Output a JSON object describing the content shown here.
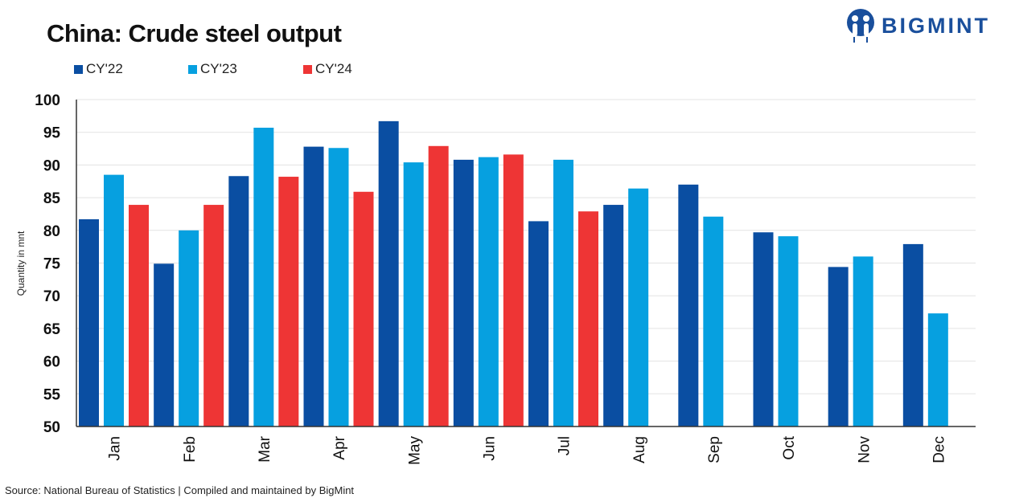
{
  "logo": {
    "text": "BIGMINT",
    "color": "#1a4f9c"
  },
  "chart_data": {
    "type": "bar",
    "title": "China: Crude steel output",
    "ylabel": "Quantity in mnt",
    "xlabel": "",
    "ylim": [
      50,
      100
    ],
    "yticks": [
      50,
      55,
      60,
      65,
      70,
      75,
      80,
      85,
      90,
      95,
      100
    ],
    "grid": true,
    "legend_position": "top-left",
    "categories": [
      "Jan",
      "Feb",
      "Mar",
      "Apr",
      "May",
      "Jun",
      "Jul",
      "Aug",
      "Sep",
      "Oct",
      "Nov",
      "Dec"
    ],
    "series": [
      {
        "name": "CY'22",
        "color": "#0a4ea2",
        "values": [
          81.7,
          74.9,
          88.3,
          92.8,
          96.7,
          90.8,
          81.4,
          83.9,
          87.0,
          79.7,
          74.4,
          77.9
        ]
      },
      {
        "name": "CY'23",
        "color": "#06a0e0",
        "values": [
          88.5,
          80.0,
          95.7,
          92.6,
          90.4,
          91.2,
          90.8,
          86.4,
          82.1,
          79.1,
          76.0,
          67.3
        ]
      },
      {
        "name": "CY'24",
        "color": "#ee3535",
        "values": [
          83.9,
          83.9,
          88.2,
          85.9,
          92.9,
          91.6,
          82.9,
          null,
          null,
          null,
          null,
          null
        ]
      }
    ],
    "source": "Source: National Bureau of Statistics | Compiled and maintained by BigMint"
  }
}
